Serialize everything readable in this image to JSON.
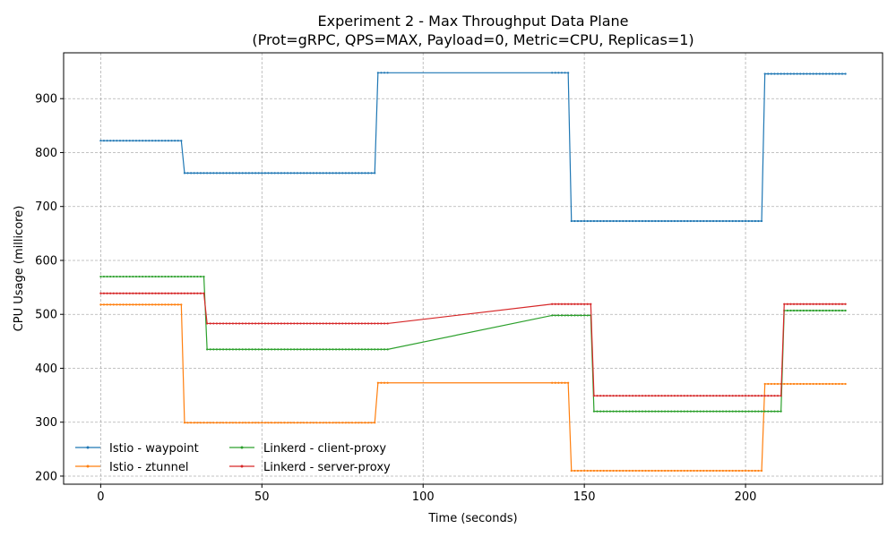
{
  "chart_data": {
    "type": "line",
    "title": "Experiment 2 - Max Throughput Data Plane",
    "subtitle": "(Prot=gRPC, QPS=MAX, Payload=0, Metric=CPU, Replicas=1)",
    "xlabel": "Time (seconds)",
    "ylabel": "CPU Usage (millicore)",
    "xlim": [
      -11.5,
      242.5
    ],
    "ylim": [
      185,
      985
    ],
    "xticks": [
      0,
      50,
      100,
      150,
      200
    ],
    "yticks": [
      200,
      300,
      400,
      500,
      600,
      700,
      800,
      900
    ],
    "grid": true,
    "legend_position": "lower-left",
    "series": [
      {
        "name": "Istio - waypoint",
        "color": "#1f77b4",
        "segments": [
          {
            "x0": 0,
            "x1": 25,
            "y": 822
          },
          {
            "x0": 26,
            "x1": 85,
            "y": 762
          },
          {
            "x0": 86,
            "x1": 89,
            "y": 948
          },
          {
            "x0": 140,
            "x1": 145,
            "y": 948
          },
          {
            "x0": 146,
            "x1": 205,
            "y": 673
          },
          {
            "x0": 206,
            "x1": 231,
            "y": 946
          }
        ]
      },
      {
        "name": "Istio - ztunnel",
        "color": "#ff7f0e",
        "segments": [
          {
            "x0": 0,
            "x1": 25,
            "y": 518
          },
          {
            "x0": 26,
            "x1": 85,
            "y": 299
          },
          {
            "x0": 86,
            "x1": 89,
            "y": 373
          },
          {
            "x0": 140,
            "x1": 145,
            "y": 373
          },
          {
            "x0": 146,
            "x1": 205,
            "y": 210
          },
          {
            "x0": 206,
            "x1": 231,
            "y": 371
          }
        ]
      },
      {
        "name": "Linkerd - client-proxy",
        "color": "#2ca02c",
        "segments": [
          {
            "x0": 0,
            "x1": 32,
            "y": 570
          },
          {
            "x0": 33,
            "x1": 89,
            "y": 435
          },
          {
            "x0": 140,
            "x1": 152,
            "y": 498
          },
          {
            "x0": 153,
            "x1": 211,
            "y": 320
          },
          {
            "x0": 212,
            "x1": 231,
            "y": 507
          }
        ]
      },
      {
        "name": "Linkerd - server-proxy",
        "color": "#d62728",
        "segments": [
          {
            "x0": 0,
            "x1": 32,
            "y": 539
          },
          {
            "x0": 33,
            "x1": 89,
            "y": 483
          },
          {
            "x0": 140,
            "x1": 152,
            "y": 519
          },
          {
            "x0": 153,
            "x1": 211,
            "y": 349
          },
          {
            "x0": 212,
            "x1": 231,
            "y": 519
          }
        ]
      }
    ]
  }
}
